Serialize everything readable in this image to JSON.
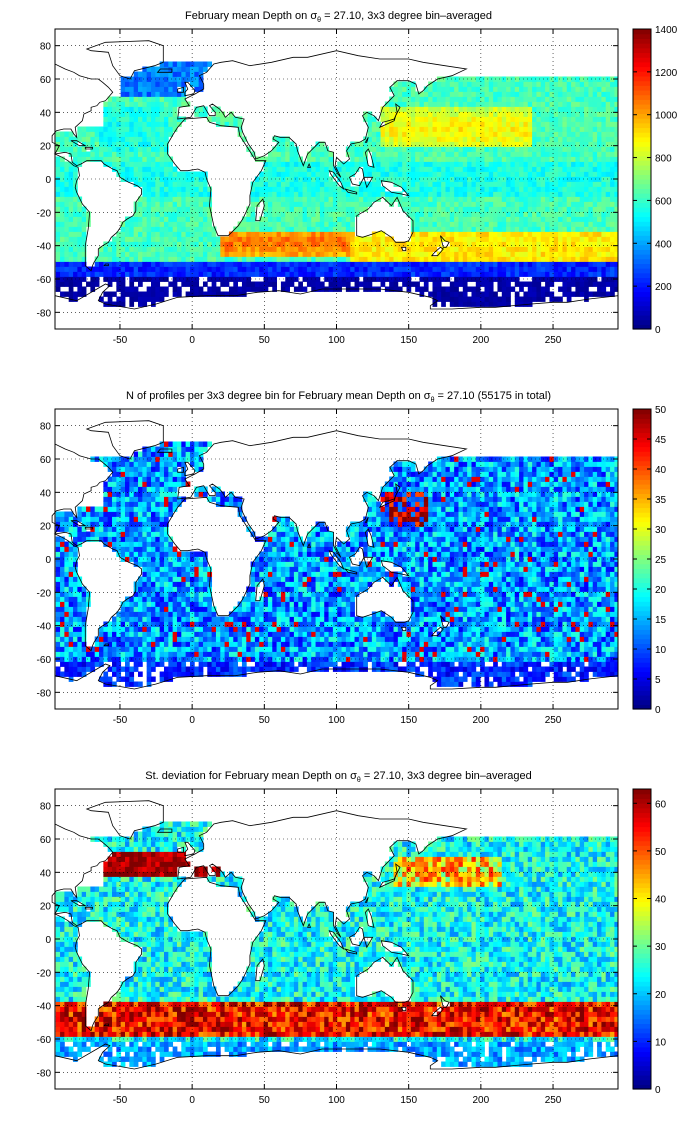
{
  "figure": {
    "background": "#ffffff"
  },
  "chart_data": [
    {
      "type": "heatmap",
      "title": "February mean Depth on σθ = 27.10, 3x3 degree bin–averaged",
      "title_parts": {
        "before": "February mean Depth on ",
        "sym": "σ",
        "sub": "θ",
        "after": " = 27.10, 3x3 degree bin–averaged"
      },
      "xlabel": "",
      "ylabel": "",
      "xlim": [
        -95,
        295
      ],
      "ylim": [
        -90,
        90
      ],
      "xticks": [
        -50,
        0,
        50,
        100,
        150,
        200,
        250
      ],
      "yticks": [
        -80,
        -60,
        -40,
        -20,
        0,
        20,
        40,
        60,
        80
      ],
      "grid": true,
      "colorbar": {
        "range": [
          0,
          1400
        ],
        "ticks": [
          0,
          200,
          400,
          600,
          800,
          1000,
          1200,
          1400
        ],
        "colormap": "jet"
      },
      "field": "depth"
    },
    {
      "type": "heatmap",
      "title": "N of profiles per 3x3 degree bin for February mean Depth on σθ = 27.10 (55175 in total)",
      "title_parts": {
        "before": "N of profiles per 3x3 degree bin for February mean Depth on ",
        "sym": "σ",
        "sub": "θ",
        "after": " = 27.10 (55175 in total)"
      },
      "xlabel": "",
      "ylabel": "",
      "xlim": [
        -95,
        295
      ],
      "ylim": [
        -90,
        90
      ],
      "xticks": [
        -50,
        0,
        50,
        100,
        150,
        200,
        250
      ],
      "yticks": [
        -80,
        -60,
        -40,
        -20,
        0,
        20,
        40,
        60,
        80
      ],
      "grid": true,
      "colorbar": {
        "range": [
          0,
          50
        ],
        "ticks": [
          0,
          5,
          10,
          15,
          20,
          25,
          30,
          35,
          40,
          45,
          50
        ],
        "colormap": "jet"
      },
      "field": "count"
    },
    {
      "type": "heatmap",
      "title": "St. deviation for February mean Depth on σθ = 27.10, 3x3 degree bin–averaged",
      "title_parts": {
        "before": "St. deviation for February mean Depth on ",
        "sym": "σ",
        "sub": "θ",
        "after": " = 27.10, 3x3 degree bin–averaged"
      },
      "xlabel": "",
      "ylabel": "",
      "xlim": [
        -95,
        295
      ],
      "ylim": [
        -90,
        90
      ],
      "xticks": [
        -50,
        0,
        50,
        100,
        150,
        200,
        250
      ],
      "yticks": [
        -80,
        -60,
        -40,
        -20,
        0,
        20,
        40,
        60,
        80
      ],
      "grid": true,
      "colorbar": {
        "range": [
          0,
          63
        ],
        "ticks": [
          0,
          10,
          20,
          30,
          40,
          50,
          60
        ],
        "colormap": "jet"
      },
      "field": "stdev"
    }
  ]
}
